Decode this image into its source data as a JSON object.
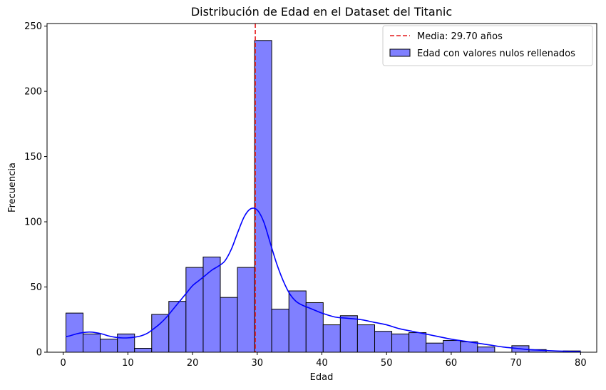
{
  "chart_data": {
    "type": "bar",
    "title": "Distribución de Edad en el Dataset del Titanic",
    "xlabel": "Edad",
    "ylabel": "Frecuencia",
    "xlim": [
      -2.5,
      82.5
    ],
    "ylim": [
      0,
      252
    ],
    "xticks": [
      0,
      10,
      20,
      30,
      40,
      50,
      60,
      70,
      80
    ],
    "yticks": [
      0,
      50,
      100,
      150,
      200,
      250
    ],
    "bins": {
      "edges": [
        0.42,
        3.07,
        5.72,
        8.38,
        11.03,
        13.68,
        16.33,
        18.98,
        21.64,
        24.29,
        26.94,
        29.59,
        32.24,
        34.9,
        37.55,
        40.2,
        42.85,
        45.5,
        48.16,
        50.81,
        53.46,
        56.11,
        58.76,
        61.42,
        64.07,
        66.72,
        69.37,
        72.02,
        74.68,
        77.33,
        79.98
      ],
      "counts": [
        30,
        14,
        10,
        14,
        3,
        29,
        39,
        65,
        73,
        42,
        65,
        239,
        33,
        47,
        38,
        21,
        28,
        21,
        16,
        14,
        15,
        7,
        9,
        8,
        4,
        0,
        5,
        2,
        0,
        1
      ]
    },
    "kde": {
      "x": [
        0.4,
        1,
        2,
        3,
        4,
        5,
        6,
        7,
        8,
        9,
        10,
        11,
        12,
        13,
        14,
        15,
        16,
        17,
        18,
        19,
        20,
        21,
        22,
        23,
        24,
        25,
        26,
        27,
        28,
        29,
        30,
        31,
        32,
        33,
        34,
        35,
        36,
        37,
        38,
        39,
        40,
        42,
        44,
        46,
        48,
        50,
        52,
        54,
        56,
        58,
        60,
        62,
        64,
        66,
        68,
        70,
        72,
        74,
        76,
        78,
        80
      ],
      "y": [
        12,
        12.5,
        14,
        15,
        15.5,
        15,
        14,
        12.5,
        11.5,
        11,
        11,
        11.5,
        12.5,
        14.5,
        18,
        22,
        27,
        33,
        39,
        45,
        51,
        55,
        59,
        63,
        66,
        70,
        79,
        92,
        104,
        110,
        109,
        100,
        84,
        68,
        55,
        45,
        39,
        36,
        34,
        32,
        30,
        27,
        26,
        25,
        23,
        21,
        18,
        16,
        14,
        12,
        10,
        8.5,
        7,
        5.5,
        4,
        3,
        2,
        1.5,
        1,
        0.7,
        0.5
      ]
    },
    "mean_line": {
      "x": 29.7,
      "label": "Media: 29.70 años",
      "color": "#e41a1c"
    },
    "series": [
      {
        "name": "Edad con valores nulos rellenados",
        "color": "#8080ff"
      }
    ],
    "kde_color": "#0000ff",
    "legend_position": "top-right",
    "grid": false
  }
}
